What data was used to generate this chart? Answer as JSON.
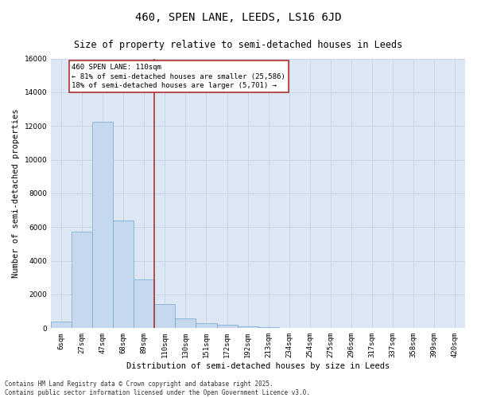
{
  "title": "460, SPEN LANE, LEEDS, LS16 6JD",
  "subtitle": "Size of property relative to semi-detached houses in Leeds",
  "xlabel": "Distribution of semi-detached houses by size in Leeds",
  "ylabel": "Number of semi-detached properties",
  "categories": [
    "6sqm",
    "27sqm",
    "47sqm",
    "68sqm",
    "89sqm",
    "110sqm",
    "130sqm",
    "151sqm",
    "172sqm",
    "192sqm",
    "213sqm",
    "234sqm",
    "254sqm",
    "275sqm",
    "296sqm",
    "317sqm",
    "337sqm",
    "358sqm",
    "399sqm",
    "420sqm"
  ],
  "bar_heights": [
    380,
    5750,
    12250,
    6400,
    2900,
    1450,
    600,
    290,
    220,
    110,
    60,
    25,
    10,
    5,
    0,
    0,
    0,
    0,
    0,
    0
  ],
  "bar_color": "#c5d8ed",
  "bar_edge_color": "#6fa8d0",
  "grid_color": "#c8d5e4",
  "background_color": "#dce7f3",
  "vline_x_index": 5,
  "vline_color": "#b03030",
  "annotation_line1": "460 SPEN LANE: 110sqm",
  "annotation_line2": "← 81% of semi-detached houses are smaller (25,586)",
  "annotation_line3": "18% of semi-detached houses are larger (5,701) →",
  "annotation_box_edge_color": "#b03030",
  "ylim": [
    0,
    16000
  ],
  "yticks": [
    0,
    2000,
    4000,
    6000,
    8000,
    10000,
    12000,
    14000,
    16000
  ],
  "footer_line1": "Contains HM Land Registry data © Crown copyright and database right 2025.",
  "footer_line2": "Contains public sector information licensed under the Open Government Licence v3.0.",
  "title_fontsize": 10,
  "subtitle_fontsize": 8.5,
  "label_fontsize": 7.5,
  "tick_fontsize": 6.5,
  "annot_fontsize": 6.5,
  "footer_fontsize": 5.5
}
